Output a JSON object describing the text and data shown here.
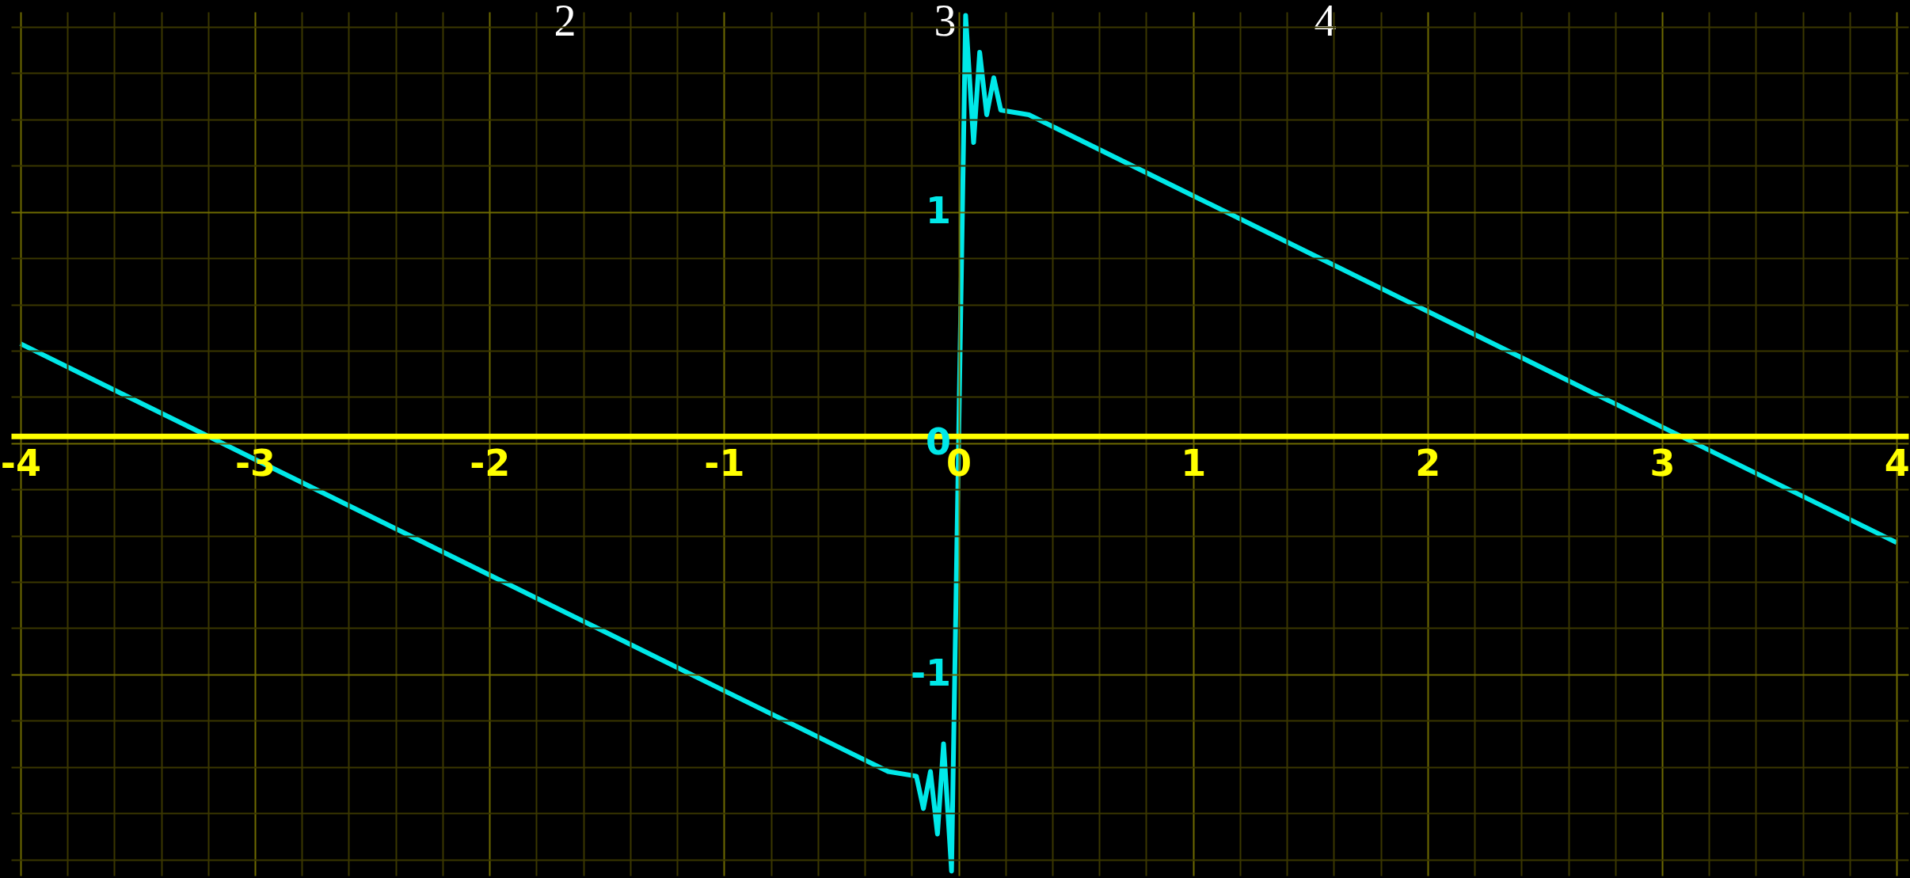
{
  "chart_data": {
    "type": "line",
    "annotations": [
      "2",
      "3",
      "4"
    ],
    "xlim": [
      -4.04,
      4.05
    ],
    "ylim": [
      -1.87,
      1.865
    ],
    "xticks": [
      -4,
      {
        "value": -3.8,
        "label": null
      },
      {
        "value": -3.6,
        "label": null
      },
      {
        "value": -3.4,
        "label": null
      },
      {
        "value": -3.2,
        "label": null
      },
      -3,
      {
        "value": -2.8,
        "label": null
      },
      {
        "value": -2.6,
        "label": null
      },
      {
        "value": -2.4,
        "label": null
      },
      {
        "value": -2.2,
        "label": null
      },
      -2,
      {
        "value": -1.8,
        "label": null
      },
      {
        "value": -1.6,
        "label": null
      },
      {
        "value": -1.4,
        "label": null
      },
      {
        "value": -1.2,
        "label": null
      },
      -1,
      {
        "value": -0.8,
        "label": null
      },
      {
        "value": -0.6,
        "label": null
      },
      {
        "value": -0.4,
        "label": null
      },
      {
        "value": -0.2,
        "label": null
      },
      0,
      {
        "value": 0.2,
        "label": null
      },
      {
        "value": 0.4,
        "label": null
      },
      {
        "value": 0.6,
        "label": null
      },
      {
        "value": 0.8,
        "label": null
      },
      1,
      {
        "value": 1.2,
        "label": null
      },
      {
        "value": 1.4,
        "label": null
      },
      {
        "value": 1.6,
        "label": null
      },
      {
        "value": 1.8,
        "label": null
      },
      2,
      {
        "value": 2.2,
        "label": null
      },
      {
        "value": 2.4,
        "label": null
      },
      {
        "value": 2.6,
        "label": null
      },
      {
        "value": 2.8,
        "label": null
      },
      3,
      {
        "value": 3.2,
        "label": null
      },
      {
        "value": 3.4,
        "label": null
      },
      {
        "value": 3.6,
        "label": null
      },
      {
        "value": 3.8,
        "label": null
      },
      4
    ],
    "yticks": [
      {
        "value": -1.8,
        "label": null
      },
      {
        "value": -1.6,
        "label": null
      },
      {
        "value": -1.4,
        "label": null
      },
      {
        "value": -1.2,
        "label": null
      },
      -1,
      {
        "value": -0.8,
        "label": null
      },
      {
        "value": -0.6,
        "label": null
      },
      {
        "value": -0.4,
        "label": null
      },
      {
        "value": -0.2,
        "label": null
      },
      0,
      {
        "value": 0.2,
        "label": null
      },
      {
        "value": 0.4,
        "label": null
      },
      {
        "value": 0.6,
        "label": null
      },
      {
        "value": 0.8,
        "label": null
      },
      1,
      {
        "value": 1.2,
        "label": null
      },
      {
        "value": 1.4,
        "label": null
      },
      {
        "value": 1.6,
        "label": null
      },
      {
        "value": 1.8,
        "label": null
      }
    ],
    "grid": true,
    "series": [
      {
        "color": "#00e8e8",
        "x": [
          -4,
          -3.5,
          -3,
          -2.5,
          -2,
          -1.5,
          -1,
          -0.5,
          -0.3,
          -0.18,
          -0.15,
          -0.12,
          -0.09,
          -0.064,
          -0.03,
          0,
          0.03,
          0.064,
          0.09,
          0.12,
          0.15,
          0.18,
          0.3,
          0.5,
          1,
          1.5,
          2,
          2.5,
          3,
          3.5,
          4
        ],
        "values": [
          0.43,
          0.18,
          -0.07,
          -0.32,
          -0.57,
          -0.82,
          -1.07,
          -1.32,
          -1.42,
          -1.44,
          -1.58,
          -1.42,
          -1.69,
          -1.3,
          -1.85,
          0,
          1.85,
          1.3,
          1.69,
          1.42,
          1.58,
          1.44,
          1.42,
          1.32,
          1.07,
          0.82,
          0.57,
          0.32,
          0.07,
          -0.18,
          -0.43
        ]
      }
    ]
  }
}
